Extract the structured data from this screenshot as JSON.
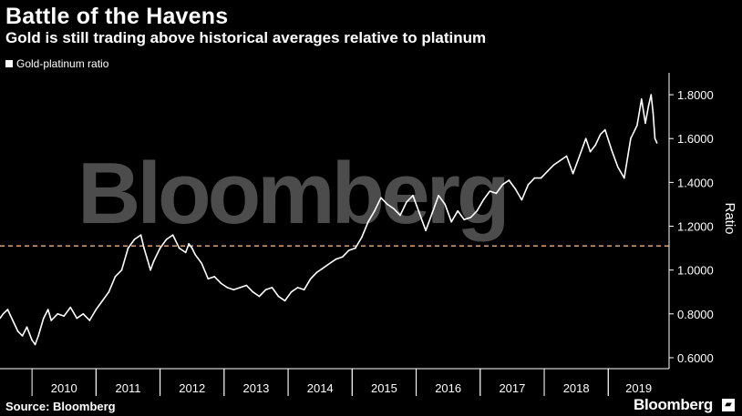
{
  "header": {
    "title": "Battle of the Havens",
    "subtitle": "Gold is still trading above historical averages relative to platinum"
  },
  "legend": {
    "series_label": "Gold-platinum ratio"
  },
  "footer": {
    "source": "Source: Bloomberg",
    "brand": "Bloomberg",
    "brand_icon": "bloomberg-terminal-icon"
  },
  "watermark": "Bloomberg",
  "chart_data": {
    "type": "line",
    "ylabel": "Ratio",
    "xlabel": "",
    "ylim": [
      0.55,
      1.9
    ],
    "yticks": [
      0.6,
      0.8,
      1.0,
      1.2,
      1.4,
      1.6,
      1.8
    ],
    "ytick_labels": [
      "0.6000",
      "0.8000",
      "1.0000",
      "1.2000",
      "1.4000",
      "1.6000",
      "1.8000"
    ],
    "xlim": [
      2009.5,
      2019.95
    ],
    "xticks_labels": [
      "2010",
      "2011",
      "2012",
      "2013",
      "2014",
      "2015",
      "2016",
      "2017",
      "2018",
      "2019"
    ],
    "reference_line": {
      "value": 1.11,
      "color": "#f0b080",
      "style": "dashed"
    },
    "grid": false,
    "legend_position": "top-left",
    "series": [
      {
        "name": "Gold-platinum ratio",
        "color": "#ffffff",
        "x": [
          2009.5,
          2009.55,
          2009.62,
          2009.7,
          2009.78,
          2009.85,
          2009.92,
          2010.0,
          2010.05,
          2010.1,
          2010.18,
          2010.25,
          2010.3,
          2010.4,
          2010.5,
          2010.6,
          2010.7,
          2010.8,
          2010.9,
          2011.0,
          2011.1,
          2011.2,
          2011.3,
          2011.4,
          2011.5,
          2011.6,
          2011.7,
          2011.75,
          2011.8,
          2011.85,
          2011.9,
          2012.0,
          2012.1,
          2012.2,
          2012.3,
          2012.4,
          2012.45,
          2012.5,
          2012.55,
          2012.65,
          2012.75,
          2012.85,
          2012.95,
          2013.05,
          2013.15,
          2013.25,
          2013.35,
          2013.45,
          2013.55,
          2013.65,
          2013.75,
          2013.85,
          2013.95,
          2014.05,
          2014.15,
          2014.25,
          2014.35,
          2014.45,
          2014.55,
          2014.65,
          2014.75,
          2014.85,
          2014.95,
          2015.05,
          2015.15,
          2015.25,
          2015.35,
          2015.45,
          2015.55,
          2015.65,
          2015.75,
          2015.85,
          2015.95,
          2016.05,
          2016.15,
          2016.25,
          2016.35,
          2016.45,
          2016.55,
          2016.65,
          2016.75,
          2016.85,
          2016.95,
          2017.05,
          2017.15,
          2017.25,
          2017.35,
          2017.45,
          2017.55,
          2017.65,
          2017.75,
          2017.85,
          2017.95,
          2018.05,
          2018.15,
          2018.25,
          2018.35,
          2018.45,
          2018.55,
          2018.65,
          2018.72,
          2018.8,
          2018.88,
          2018.95,
          2019.05,
          2019.15,
          2019.25,
          2019.35,
          2019.45,
          2019.52,
          2019.58,
          2019.63,
          2019.67,
          2019.7,
          2019.73,
          2019.76
        ],
        "values": [
          0.78,
          0.8,
          0.82,
          0.77,
          0.72,
          0.7,
          0.74,
          0.68,
          0.66,
          0.7,
          0.78,
          0.82,
          0.77,
          0.8,
          0.79,
          0.83,
          0.78,
          0.8,
          0.77,
          0.82,
          0.86,
          0.9,
          0.97,
          1.0,
          1.1,
          1.14,
          1.16,
          1.1,
          1.05,
          1.0,
          1.04,
          1.1,
          1.14,
          1.16,
          1.1,
          1.08,
          1.12,
          1.1,
          1.07,
          1.03,
          0.96,
          0.97,
          0.94,
          0.92,
          0.91,
          0.92,
          0.93,
          0.9,
          0.88,
          0.91,
          0.92,
          0.88,
          0.86,
          0.9,
          0.92,
          0.91,
          0.96,
          0.99,
          1.01,
          1.03,
          1.05,
          1.06,
          1.09,
          1.1,
          1.15,
          1.22,
          1.27,
          1.33,
          1.3,
          1.28,
          1.25,
          1.31,
          1.34,
          1.26,
          1.18,
          1.26,
          1.34,
          1.3,
          1.22,
          1.27,
          1.23,
          1.24,
          1.27,
          1.32,
          1.36,
          1.35,
          1.39,
          1.41,
          1.37,
          1.32,
          1.39,
          1.42,
          1.42,
          1.45,
          1.48,
          1.5,
          1.52,
          1.44,
          1.52,
          1.6,
          1.54,
          1.57,
          1.62,
          1.64,
          1.55,
          1.47,
          1.42,
          1.6,
          1.66,
          1.78,
          1.67,
          1.75,
          1.8,
          1.72,
          1.6,
          1.58
        ]
      }
    ]
  }
}
